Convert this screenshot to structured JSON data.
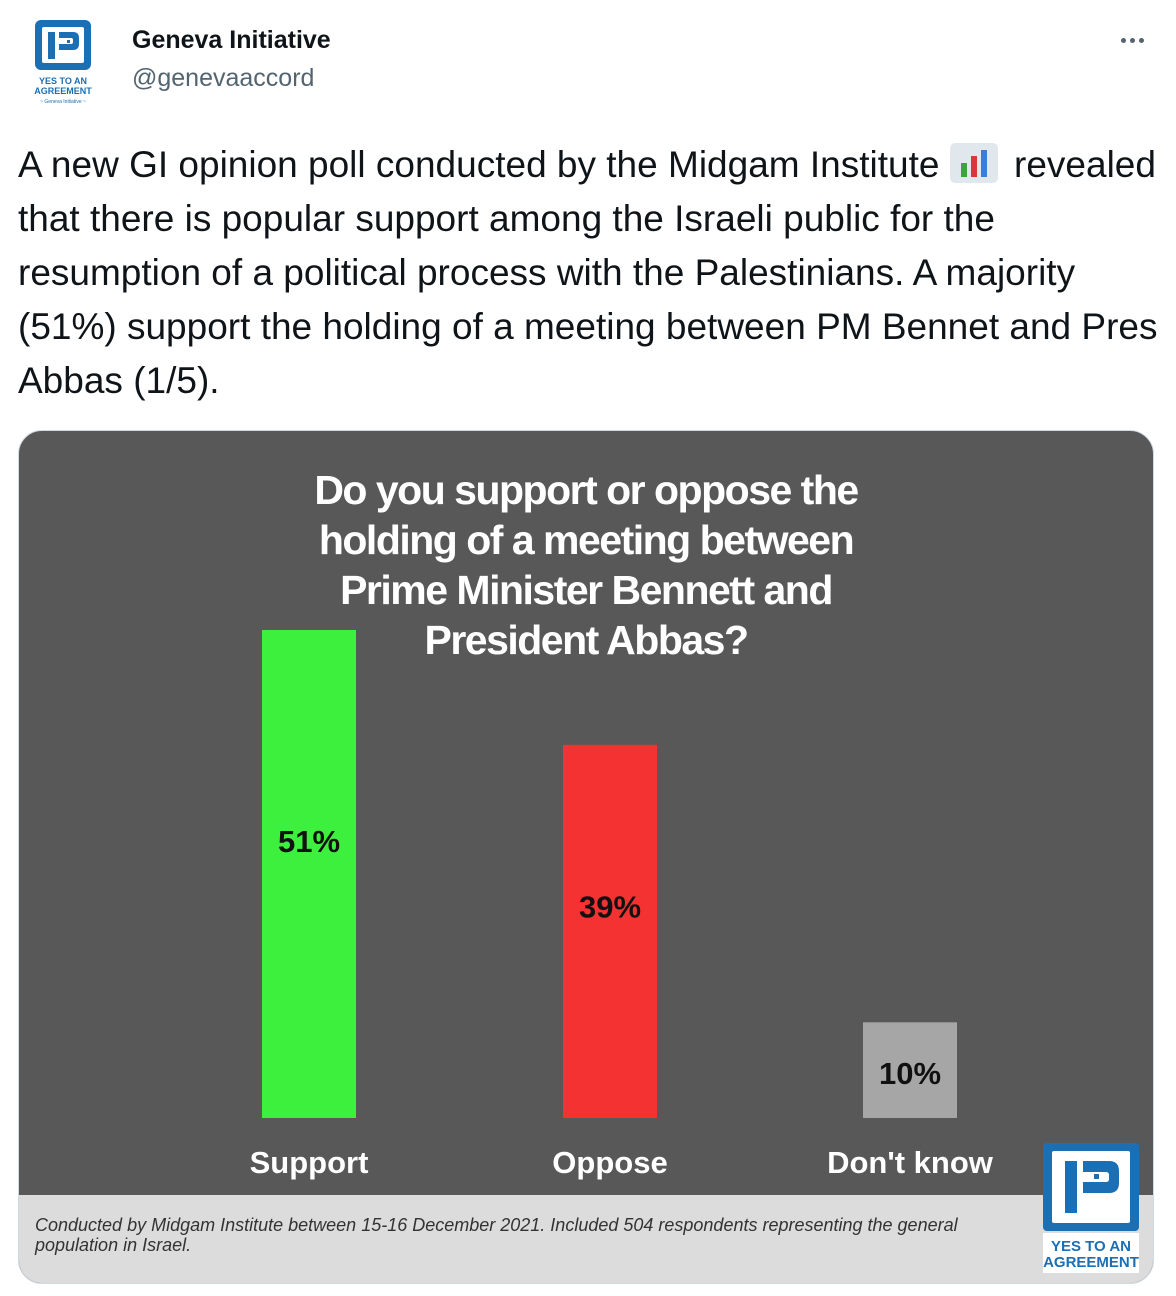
{
  "tweet": {
    "author_name": "Geneva Initiative",
    "author_handle": "@genevaaccord",
    "more_icon": "more-horizontal-icon",
    "avatar_text": [
      "YES TO AN",
      "AGREEMENT",
      "~ Geneva Initiative ~"
    ],
    "text_part1": "A new GI opinion poll conducted by the Midgam Institute ",
    "emoji_icon": "bar-chart-emoji-icon",
    "text_part2": " revealed that there is popular support among the Israeli public for the resumption of a political process with the Palestinians. A majority (51%) support the holding of a meeting between PM Bennet and Pres Abbas (1/5)."
  },
  "media": {
    "title_lines": [
      "Do you support or oppose the",
      "holding of a meeting between",
      "Prime Minister Bennett and",
      "President Abbas?"
    ],
    "footnote": "Conducted by Midgam Institute between 15-16 December 2021. Included 504 respondents representing the general population in Israel.",
    "logo_text": [
      "YES TO AN",
      "AGREEMENT"
    ],
    "colors": {
      "background": "#585858",
      "support": "#3ef03e",
      "oppose": "#f53232",
      "dont_know": "#a6a6a6",
      "logo_blue": "#1a6fb5"
    }
  },
  "chart_data": {
    "type": "bar",
    "title": "Do you support or oppose the holding of a meeting between Prime Minister Bennett and President Abbas?",
    "categories": [
      "Support",
      "Oppose",
      "Don't know"
    ],
    "values": [
      51,
      39,
      10
    ],
    "value_labels": [
      "51%",
      "39%",
      "10%"
    ],
    "colors": [
      "#3ef03e",
      "#f53232",
      "#a6a6a6"
    ],
    "ylim": [
      0,
      51
    ],
    "grid": false,
    "legend": "none"
  }
}
